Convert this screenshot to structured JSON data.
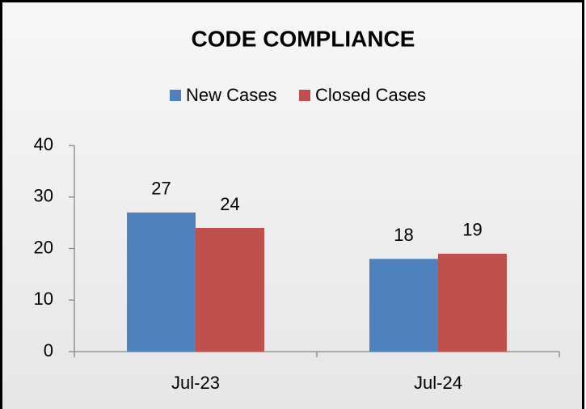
{
  "chart_data": {
    "type": "bar",
    "title": "CODE COMPLIANCE",
    "categories": [
      "Jul-23",
      "Jul-24"
    ],
    "series": [
      {
        "name": "New Cases",
        "color": "#4f81bd",
        "values": [
          27,
          18
        ]
      },
      {
        "name": "Closed Cases",
        "color": "#c0504d",
        "values": [
          24,
          19
        ]
      }
    ],
    "ylim": [
      0,
      40
    ],
    "yticks": [
      0,
      10,
      20,
      30,
      40
    ],
    "grid": false,
    "legend": "top"
  }
}
